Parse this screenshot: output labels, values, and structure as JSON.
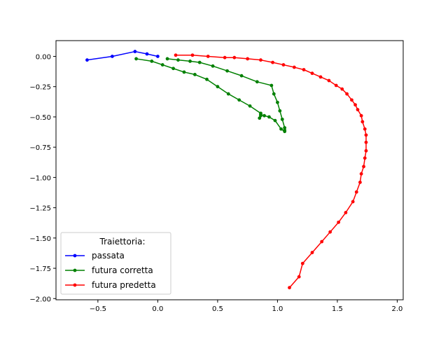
{
  "chart_data": {
    "type": "line",
    "title": "",
    "xlabel": "",
    "ylabel": "",
    "xlim": [
      -0.85,
      2.05
    ],
    "ylim": [
      -2.01,
      0.13
    ],
    "xticks": [
      {
        "value": -0.5,
        "label": "−0.5"
      },
      {
        "value": 0.0,
        "label": "0.0"
      },
      {
        "value": 0.5,
        "label": "0.5"
      },
      {
        "value": 1.0,
        "label": "1.0"
      },
      {
        "value": 1.5,
        "label": "1.5"
      },
      {
        "value": 2.0,
        "label": "2.0"
      }
    ],
    "yticks": [
      {
        "value": 0.0,
        "label": "0.00"
      },
      {
        "value": -0.25,
        "label": "−0.25"
      },
      {
        "value": -0.5,
        "label": "−0.50"
      },
      {
        "value": -0.75,
        "label": "−0.75"
      },
      {
        "value": -1.0,
        "label": "−1.00"
      },
      {
        "value": -1.25,
        "label": "−1.25"
      },
      {
        "value": -1.5,
        "label": "−1.50"
      },
      {
        "value": -1.75,
        "label": "−1.75"
      },
      {
        "value": -2.0,
        "label": "−2.00"
      }
    ],
    "grid": false,
    "legend": {
      "title": "Traiettoria:",
      "placement": "lower-left"
    },
    "series": [
      {
        "name": "passata",
        "color": "#0000ff",
        "marker": "circle",
        "points": [
          [
            -0.59,
            -0.03
          ],
          [
            -0.38,
            0.0
          ],
          [
            -0.19,
            0.04
          ],
          [
            -0.09,
            0.02
          ],
          [
            0.0,
            0.0
          ]
        ]
      },
      {
        "name": "futura corretta",
        "color": "#008000",
        "marker": "circle",
        "points": [
          [
            -0.18,
            -0.02
          ],
          [
            -0.05,
            -0.04
          ],
          [
            0.04,
            -0.07
          ],
          [
            0.13,
            -0.1
          ],
          [
            0.22,
            -0.13
          ],
          [
            0.31,
            -0.15
          ],
          [
            0.41,
            -0.19
          ],
          [
            0.5,
            -0.25
          ],
          [
            0.59,
            -0.31
          ],
          [
            0.68,
            -0.36
          ],
          [
            0.77,
            -0.41
          ],
          [
            0.86,
            -0.47
          ],
          [
            0.86,
            -0.49
          ],
          [
            0.85,
            -0.51
          ],
          [
            0.86,
            -0.48
          ],
          [
            0.89,
            -0.49
          ],
          [
            0.93,
            -0.5
          ],
          [
            0.98,
            -0.53
          ],
          [
            1.03,
            -0.6
          ],
          [
            1.06,
            -0.62
          ],
          [
            1.06,
            -0.61
          ],
          [
            1.06,
            -0.59
          ],
          [
            1.04,
            -0.52
          ],
          [
            1.02,
            -0.45
          ],
          [
            1.0,
            -0.38
          ],
          [
            0.97,
            -0.31
          ],
          [
            0.95,
            -0.24
          ],
          [
            0.83,
            -0.21
          ],
          [
            0.7,
            -0.16
          ],
          [
            0.58,
            -0.12
          ],
          [
            0.46,
            -0.08
          ],
          [
            0.35,
            -0.05
          ],
          [
            0.27,
            -0.04
          ],
          [
            0.17,
            -0.03
          ],
          [
            0.08,
            -0.02
          ]
        ]
      },
      {
        "name": "futura predetta",
        "color": "#ff0000",
        "marker": "circle",
        "points": [
          [
            0.15,
            0.01
          ],
          [
            0.29,
            0.01
          ],
          [
            0.42,
            0.0
          ],
          [
            0.56,
            -0.01
          ],
          [
            0.64,
            -0.01
          ],
          [
            0.75,
            -0.02
          ],
          [
            0.86,
            -0.03
          ],
          [
            0.96,
            -0.05
          ],
          [
            1.05,
            -0.07
          ],
          [
            1.14,
            -0.09
          ],
          [
            1.22,
            -0.11
          ],
          [
            1.29,
            -0.14
          ],
          [
            1.36,
            -0.17
          ],
          [
            1.43,
            -0.2
          ],
          [
            1.49,
            -0.24
          ],
          [
            1.54,
            -0.27
          ],
          [
            1.58,
            -0.31
          ],
          [
            1.62,
            -0.36
          ],
          [
            1.65,
            -0.4
          ],
          [
            1.67,
            -0.44
          ],
          [
            1.7,
            -0.49
          ],
          [
            1.71,
            -0.54
          ],
          [
            1.73,
            -0.6
          ],
          [
            1.74,
            -0.65
          ],
          [
            1.74,
            -0.71
          ],
          [
            1.74,
            -0.78
          ],
          [
            1.73,
            -0.84
          ],
          [
            1.72,
            -0.91
          ],
          [
            1.7,
            -0.97
          ],
          [
            1.69,
            -1.04
          ],
          [
            1.66,
            -1.12
          ],
          [
            1.63,
            -1.2
          ],
          [
            1.57,
            -1.29
          ],
          [
            1.51,
            -1.37
          ],
          [
            1.44,
            -1.45
          ],
          [
            1.37,
            -1.53
          ],
          [
            1.29,
            -1.62
          ],
          [
            1.21,
            -1.71
          ],
          [
            1.18,
            -1.82
          ],
          [
            1.1,
            -1.91
          ]
        ]
      }
    ]
  }
}
